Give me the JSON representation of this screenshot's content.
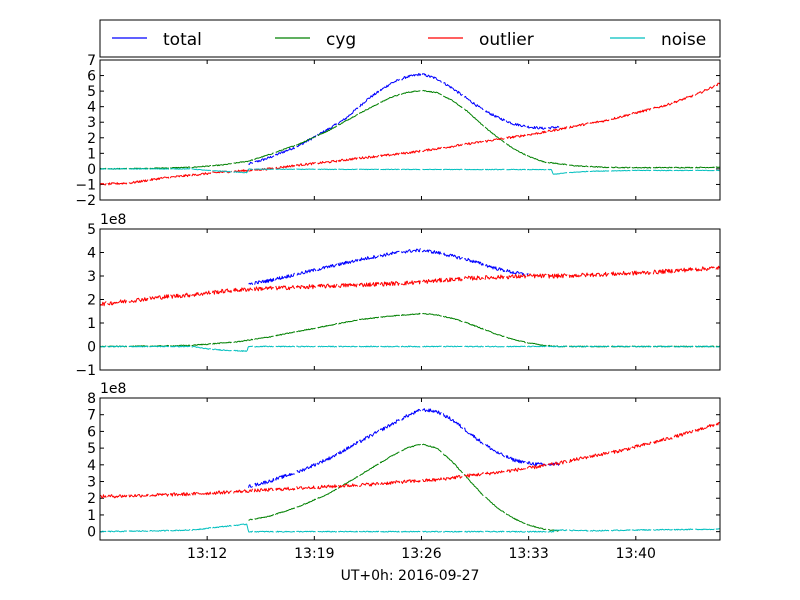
{
  "chart_data": {
    "type": "line",
    "xlabel": "UT+0h: 2016-09-27",
    "x_tick_labels": [
      "13:12",
      "13:19",
      "13:26",
      "13:33",
      "13:40"
    ],
    "x_ticks_minutes": [
      12,
      19,
      26,
      33,
      40
    ],
    "x_range_minutes": [
      5,
      45.5
    ],
    "legend": {
      "placement": "top",
      "entries": [
        {
          "name": "total",
          "color": "#0000ff"
        },
        {
          "name": "cyg",
          "color": "#008000"
        },
        {
          "name": "outlier",
          "color": "#ff0000"
        },
        {
          "name": "noise",
          "color": "#00bfbf"
        }
      ]
    },
    "panels": [
      {
        "ylim": [
          -2,
          7
        ],
        "y_ticks": [
          -2,
          -1,
          0,
          1,
          2,
          3,
          4,
          5,
          6,
          7
        ],
        "y_tick_labels": [
          "−2",
          "−1",
          "0",
          "1",
          "2",
          "3",
          "4",
          "5",
          "6",
          "7"
        ],
        "offset_label": "",
        "series": [
          {
            "name": "total",
            "noise": 0.08,
            "points": [
              [
                14.7,
                0.3
              ],
              [
                16,
                0.7
              ],
              [
                18,
                1.5
              ],
              [
                20,
                2.6
              ],
              [
                21,
                3.2
              ],
              [
                22.5,
                4.5
              ],
              [
                24,
                5.5
              ],
              [
                25,
                5.9
              ],
              [
                26,
                6.1
              ],
              [
                27,
                5.8
              ],
              [
                28,
                5.2
              ],
              [
                29,
                4.5
              ],
              [
                30,
                3.8
              ],
              [
                31,
                3.3
              ],
              [
                32,
                2.9
              ],
              [
                33,
                2.7
              ],
              [
                34,
                2.6
              ],
              [
                35,
                2.7
              ]
            ]
          },
          {
            "name": "cyg",
            "noise": 0.03,
            "points": [
              [
                5,
                0
              ],
              [
                7,
                0.02
              ],
              [
                9,
                0.05
              ],
              [
                11,
                0.1
              ],
              [
                13,
                0.25
              ],
              [
                14.7,
                0.5
              ],
              [
                16,
                0.9
              ],
              [
                18,
                1.6
              ],
              [
                20,
                2.5
              ],
              [
                22,
                3.6
              ],
              [
                24,
                4.6
              ],
              [
                25,
                4.9
              ],
              [
                26,
                5.05
              ],
              [
                27,
                4.9
              ],
              [
                28,
                4.4
              ],
              [
                29,
                3.7
              ],
              [
                30,
                2.8
              ],
              [
                31,
                2.0
              ],
              [
                32,
                1.3
              ],
              [
                33,
                0.8
              ],
              [
                34,
                0.45
              ],
              [
                36,
                0.2
              ],
              [
                38,
                0.1
              ],
              [
                40,
                0.08
              ],
              [
                42,
                0.08
              ],
              [
                45.5,
                0.1
              ]
            ]
          },
          {
            "name": "outlier",
            "noise": 0.07,
            "points": [
              [
                5,
                -1.0
              ],
              [
                7,
                -0.9
              ],
              [
                9,
                -0.6
              ],
              [
                11,
                -0.4
              ],
              [
                13,
                -0.2
              ],
              [
                14.7,
                -0.1
              ],
              [
                16,
                0
              ],
              [
                18,
                0.25
              ],
              [
                20,
                0.45
              ],
              [
                22,
                0.7
              ],
              [
                24,
                0.9
              ],
              [
                26,
                1.15
              ],
              [
                28,
                1.45
              ],
              [
                30,
                1.75
              ],
              [
                32,
                2.05
              ],
              [
                34,
                2.35
              ],
              [
                36,
                2.75
              ],
              [
                38,
                3.1
              ],
              [
                40,
                3.6
              ],
              [
                42,
                4.1
              ],
              [
                44,
                4.8
              ],
              [
                45.5,
                5.5
              ]
            ]
          },
          {
            "name": "noise",
            "noise": 0.02,
            "points": [
              [
                5,
                0
              ],
              [
                11,
                0
              ],
              [
                12,
                -0.1
              ],
              [
                13,
                -0.15
              ],
              [
                14.6,
                -0.25
              ],
              [
                14.7,
                -0.02
              ],
              [
                34.5,
                -0.05
              ],
              [
                34.6,
                -0.35
              ],
              [
                35.5,
                -0.25
              ],
              [
                37,
                -0.15
              ],
              [
                40,
                -0.1
              ],
              [
                45.5,
                -0.1
              ]
            ]
          }
        ]
      },
      {
        "ylim": [
          -1,
          5
        ],
        "y_ticks": [
          -1,
          0,
          1,
          2,
          3,
          4,
          5
        ],
        "y_tick_labels": [
          "−1",
          "0",
          "1",
          "2",
          "3",
          "4",
          "5"
        ],
        "offset_label": "1e8",
        "series": [
          {
            "name": "total",
            "noise": 0.07,
            "points": [
              [
                14.7,
                2.65
              ],
              [
                16,
                2.8
              ],
              [
                18,
                3.1
              ],
              [
                20,
                3.4
              ],
              [
                22,
                3.7
              ],
              [
                24,
                3.95
              ],
              [
                25,
                4.05
              ],
              [
                26,
                4.1
              ],
              [
                27,
                4.0
              ],
              [
                28,
                3.85
              ],
              [
                29,
                3.7
              ],
              [
                30,
                3.5
              ],
              [
                31,
                3.3
              ],
              [
                32,
                3.15
              ],
              [
                33,
                3.05
              ]
            ]
          },
          {
            "name": "cyg",
            "noise": 0.02,
            "points": [
              [
                5,
                0
              ],
              [
                9,
                0.02
              ],
              [
                11,
                0.05
              ],
              [
                12,
                0.1
              ],
              [
                14,
                0.2
              ],
              [
                16,
                0.4
              ],
              [
                18,
                0.65
              ],
              [
                20,
                0.9
              ],
              [
                22,
                1.15
              ],
              [
                24,
                1.3
              ],
              [
                26,
                1.4
              ],
              [
                27,
                1.35
              ],
              [
                28,
                1.2
              ],
              [
                29,
                1.0
              ],
              [
                30,
                0.75
              ],
              [
                31,
                0.5
              ],
              [
                32,
                0.3
              ],
              [
                33,
                0.15
              ],
              [
                34,
                0.05
              ],
              [
                35,
                0
              ],
              [
                45.5,
                0
              ]
            ]
          },
          {
            "name": "outlier",
            "noise": 0.09,
            "points": [
              [
                5,
                1.8
              ],
              [
                7,
                1.95
              ],
              [
                9,
                2.1
              ],
              [
                11,
                2.2
              ],
              [
                13,
                2.35
              ],
              [
                15,
                2.45
              ],
              [
                17,
                2.5
              ],
              [
                19,
                2.55
              ],
              [
                21,
                2.6
              ],
              [
                23,
                2.65
              ],
              [
                25,
                2.7
              ],
              [
                27,
                2.8
              ],
              [
                29,
                2.9
              ],
              [
                31,
                2.95
              ],
              [
                33,
                3.0
              ],
              [
                35,
                3.0
              ],
              [
                37,
                3.05
              ],
              [
                39,
                3.1
              ],
              [
                41,
                3.15
              ],
              [
                43,
                3.25
              ],
              [
                45.5,
                3.35
              ]
            ]
          },
          {
            "name": "noise",
            "noise": 0.02,
            "points": [
              [
                5,
                0
              ],
              [
                11,
                0
              ],
              [
                12,
                -0.1
              ],
              [
                13,
                -0.15
              ],
              [
                14.6,
                -0.2
              ],
              [
                14.7,
                0
              ],
              [
                45.5,
                0
              ]
            ]
          }
        ]
      },
      {
        "ylim": [
          -0.5,
          8
        ],
        "y_ticks": [
          0,
          1,
          2,
          3,
          4,
          5,
          6,
          7,
          8
        ],
        "y_tick_labels": [
          "0",
          "1",
          "2",
          "3",
          "4",
          "5",
          "6",
          "7",
          "8"
        ],
        "offset_label": "1e8",
        "series": [
          {
            "name": "total",
            "noise": 0.1,
            "points": [
              [
                14.7,
                2.7
              ],
              [
                16,
                3.0
              ],
              [
                18,
                3.6
              ],
              [
                20,
                4.4
              ],
              [
                22,
                5.4
              ],
              [
                24,
                6.4
              ],
              [
                25,
                6.9
              ],
              [
                26,
                7.3
              ],
              [
                27,
                7.2
              ],
              [
                28,
                6.7
              ],
              [
                29,
                6.0
              ],
              [
                30,
                5.3
              ],
              [
                31,
                4.7
              ],
              [
                32,
                4.3
              ],
              [
                33,
                4.1
              ],
              [
                34,
                4.0
              ],
              [
                35,
                4.05
              ]
            ]
          },
          {
            "name": "cyg",
            "noise": 0.03,
            "points": [
              [
                14.7,
                0.7
              ],
              [
                16,
                0.9
              ],
              [
                18,
                1.5
              ],
              [
                20,
                2.3
              ],
              [
                22,
                3.4
              ],
              [
                24,
                4.5
              ],
              [
                25,
                5.0
              ],
              [
                26,
                5.25
              ],
              [
                27,
                5.0
              ],
              [
                28,
                4.2
              ],
              [
                29,
                3.2
              ],
              [
                30,
                2.2
              ],
              [
                31,
                1.4
              ],
              [
                32,
                0.8
              ],
              [
                33,
                0.4
              ],
              [
                34,
                0.15
              ],
              [
                35,
                0.05
              ]
            ]
          },
          {
            "name": "outlier",
            "noise": 0.1,
            "points": [
              [
                5,
                2.1
              ],
              [
                7,
                2.15
              ],
              [
                9,
                2.2
              ],
              [
                11,
                2.25
              ],
              [
                13,
                2.35
              ],
              [
                15,
                2.45
              ],
              [
                17,
                2.55
              ],
              [
                19,
                2.65
              ],
              [
                21,
                2.75
              ],
              [
                23,
                2.85
              ],
              [
                25,
                3.0
              ],
              [
                27,
                3.1
              ],
              [
                29,
                3.35
              ],
              [
                31,
                3.55
              ],
              [
                33,
                3.8
              ],
              [
                35,
                4.1
              ],
              [
                37,
                4.5
              ],
              [
                39,
                4.85
              ],
              [
                41,
                5.3
              ],
              [
                43,
                5.8
              ],
              [
                45.5,
                6.5
              ]
            ]
          },
          {
            "name": "noise",
            "noise": 0.03,
            "points": [
              [
                5,
                0
              ],
              [
                9,
                0.05
              ],
              [
                11,
                0.1
              ],
              [
                12,
                0.2
              ],
              [
                13,
                0.3
              ],
              [
                14.6,
                0.45
              ],
              [
                14.7,
                0
              ],
              [
                34.6,
                0
              ],
              [
                34.7,
                0.1
              ],
              [
                37,
                0.05
              ],
              [
                40,
                0.1
              ],
              [
                45.5,
                0.15
              ]
            ]
          }
        ]
      }
    ]
  }
}
